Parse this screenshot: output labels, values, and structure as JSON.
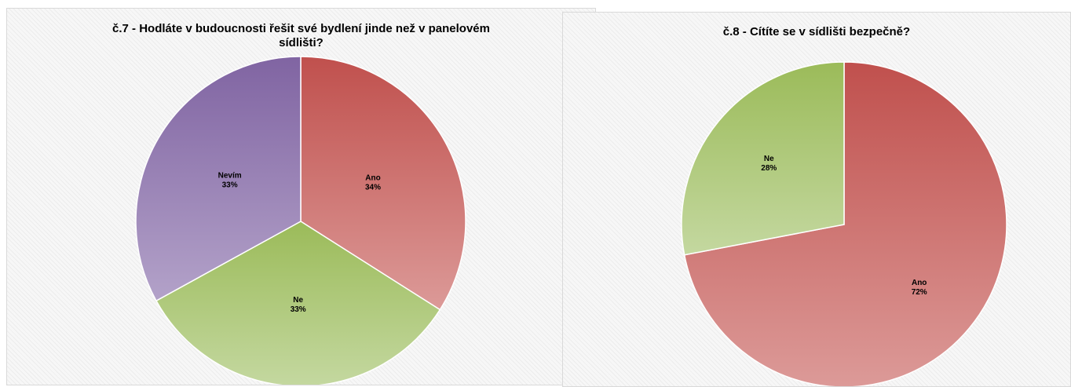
{
  "chart_data": [
    {
      "type": "pie",
      "title": "č.7 - Hodláte v budoucnosti řešit své bydlení jinde než v panelovém sídlišti?",
      "slices": [
        {
          "label": "Ano",
          "value": 34,
          "display": "34%",
          "color": "#c0504d",
          "color_light": "#dc9a98"
        },
        {
          "label": "Ne",
          "value": 33,
          "display": "33%",
          "color": "#9bbb59",
          "color_light": "#c4d8a0"
        },
        {
          "label": "Nevím",
          "value": 33,
          "display": "33%",
          "color": "#8064a2",
          "color_light": "#b3a2c9"
        }
      ]
    },
    {
      "type": "pie",
      "title": "č.8 - Cítíte se v sídlišti bezpečně?",
      "slices": [
        {
          "label": "Ano",
          "value": 72,
          "display": "72%",
          "color": "#c0504d",
          "color_light": "#dc9a98"
        },
        {
          "label": "Ne",
          "value": 28,
          "display": "28%",
          "color": "#9bbb59",
          "color_light": "#c4d8a0"
        }
      ]
    }
  ]
}
